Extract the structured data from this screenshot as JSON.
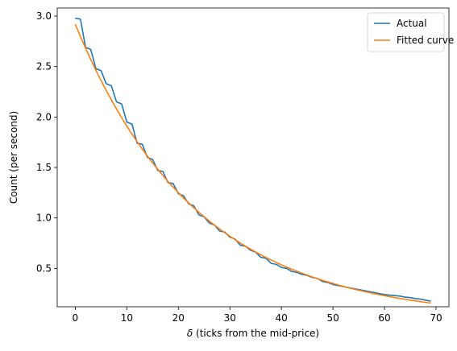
{
  "chart_data": {
    "type": "line",
    "xlabel": "δ (ticks from the mid-price)",
    "ylabel": "Count (per second)",
    "xlim": [
      -3.5,
      72.5
    ],
    "ylim": [
      0.12,
      3.08
    ],
    "xticks": [
      0,
      10,
      20,
      30,
      40,
      50,
      60,
      70
    ],
    "yticks": [
      0.5,
      1.0,
      1.5,
      2.0,
      2.5,
      3.0
    ],
    "ytick_labels": [
      "0.5",
      "1.0",
      "1.5",
      "2.0",
      "2.5",
      "3.0"
    ],
    "legend_position": "top-right",
    "series": [
      {
        "name": "Actual",
        "color": "#1f77b4",
        "x": [
          0,
          1,
          2,
          3,
          4,
          5,
          6,
          7,
          8,
          9,
          10,
          11,
          12,
          13,
          14,
          15,
          16,
          17,
          18,
          19,
          20,
          21,
          22,
          23,
          24,
          25,
          26,
          27,
          28,
          29,
          30,
          31,
          32,
          33,
          34,
          35,
          36,
          37,
          38,
          39,
          40,
          41,
          42,
          43,
          44,
          45,
          46,
          47,
          48,
          49,
          50,
          51,
          52,
          53,
          54,
          55,
          56,
          57,
          58,
          59,
          60,
          61,
          62,
          63,
          64,
          65,
          66,
          67,
          68,
          69
        ],
        "y": [
          2.98,
          2.97,
          2.69,
          2.67,
          2.48,
          2.46,
          2.33,
          2.31,
          2.15,
          2.13,
          1.95,
          1.93,
          1.74,
          1.73,
          1.6,
          1.58,
          1.47,
          1.46,
          1.35,
          1.34,
          1.24,
          1.22,
          1.14,
          1.12,
          1.03,
          1.01,
          0.95,
          0.93,
          0.87,
          0.86,
          0.81,
          0.79,
          0.73,
          0.72,
          0.68,
          0.66,
          0.61,
          0.6,
          0.55,
          0.54,
          0.51,
          0.5,
          0.47,
          0.46,
          0.44,
          0.43,
          0.41,
          0.4,
          0.37,
          0.36,
          0.34,
          0.33,
          0.32,
          0.31,
          0.3,
          0.29,
          0.28,
          0.27,
          0.26,
          0.25,
          0.24,
          0.235,
          0.23,
          0.225,
          0.215,
          0.21,
          0.2,
          0.195,
          0.185,
          0.175
        ]
      },
      {
        "name": "Fitted curve",
        "color": "#ff7f0e",
        "fit": {
          "a": 2.92,
          "b": 0.0424
        },
        "x_range": [
          0,
          69
        ]
      }
    ]
  }
}
